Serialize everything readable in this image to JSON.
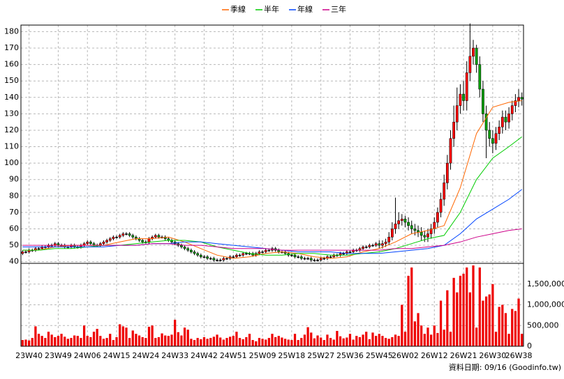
{
  "chart_data": [
    {
      "type": "candlestick",
      "legend": "top",
      "up_color": "#ff0000",
      "down_color": "#00a000",
      "categories": [
        null,
        null,
        "23W40",
        null,
        null,
        null,
        null,
        null,
        null,
        null,
        null,
        "23W49",
        null,
        null,
        null,
        null,
        null,
        null,
        null,
        null,
        "24W06",
        null,
        null,
        null,
        null,
        null,
        null,
        null,
        null,
        "24W15",
        null,
        null,
        null,
        null,
        null,
        null,
        null,
        null,
        "24W24",
        null,
        null,
        null,
        null,
        null,
        null,
        null,
        null,
        "24W33",
        null,
        null,
        null,
        null,
        null,
        null,
        null,
        null,
        "24W42",
        null,
        null,
        null,
        null,
        null,
        null,
        null,
        null,
        "24W51",
        null,
        null,
        null,
        null,
        null,
        null,
        null,
        null,
        "25W09",
        null,
        null,
        null,
        null,
        null,
        null,
        null,
        null,
        "25W18",
        null,
        null,
        null,
        null,
        null,
        null,
        null,
        null,
        "25W27",
        null,
        null,
        null,
        null,
        null,
        null,
        null,
        null,
        "25W36",
        null,
        null,
        null,
        null,
        null,
        null,
        null,
        null,
        "25W45",
        null,
        null,
        null,
        null,
        null,
        null,
        null,
        "26W02",
        null,
        null,
        null,
        null,
        null,
        null,
        null,
        null,
        "26W12",
        null,
        null,
        null,
        null,
        null,
        null,
        null,
        null,
        "26W21",
        null,
        null,
        null,
        null,
        null,
        null,
        null,
        null,
        "26W30",
        null,
        null,
        null,
        null,
        null,
        null,
        null,
        "26W38",
        null
      ],
      "open": [
        45,
        46,
        46,
        47,
        47,
        48,
        48,
        49,
        49,
        50,
        50,
        51,
        50,
        50,
        49,
        49,
        50,
        49,
        49,
        50,
        51,
        52,
        51,
        50,
        50,
        51,
        52,
        53,
        54,
        55,
        55,
        56,
        57,
        57,
        56,
        55,
        54,
        53,
        52,
        52,
        54,
        55,
        56,
        55,
        55,
        54,
        53,
        52,
        51,
        50,
        49,
        48,
        47,
        46,
        45,
        44,
        43,
        43,
        42,
        42,
        41,
        41,
        41,
        42,
        42,
        43,
        43,
        44,
        44,
        45,
        45,
        45,
        44,
        45,
        46,
        46,
        47,
        47,
        48,
        47,
        46,
        46,
        45,
        44,
        44,
        43,
        43,
        42,
        42,
        42,
        41,
        41,
        41,
        42,
        42,
        43,
        43,
        44,
        44,
        45,
        45,
        46,
        46,
        47,
        47,
        48,
        49,
        49,
        50,
        50,
        51,
        50,
        51,
        52,
        55,
        60,
        63,
        65,
        66,
        64,
        62,
        60,
        59,
        58,
        56,
        55,
        57,
        60,
        64,
        70,
        78,
        88,
        100,
        115,
        125,
        135,
        142,
        138,
        155,
        165,
        170,
        160,
        145,
        130,
        120,
        115,
        112,
        118,
        122,
        128,
        125,
        130,
        135,
        138,
        140
      ],
      "high": [
        47,
        47,
        48,
        48,
        49,
        49,
        50,
        50,
        51,
        51,
        52,
        52,
        51,
        51,
        50,
        51,
        51,
        50,
        51,
        52,
        53,
        53,
        52,
        51,
        52,
        53,
        54,
        55,
        56,
        56,
        57,
        58,
        58,
        58,
        57,
        56,
        55,
        54,
        53,
        55,
        56,
        57,
        57,
        56,
        56,
        55,
        54,
        53,
        52,
        51,
        50,
        49,
        48,
        47,
        46,
        45,
        44,
        44,
        43,
        43,
        42,
        42,
        43,
        43,
        44,
        44,
        45,
        45,
        46,
        46,
        46,
        46,
        46,
        47,
        47,
        48,
        48,
        49,
        49,
        48,
        47,
        47,
        46,
        45,
        45,
        44,
        44,
        43,
        43,
        43,
        42,
        42,
        43,
        43,
        44,
        44,
        45,
        45,
        46,
        46,
        47,
        47,
        48,
        48,
        49,
        50,
        50,
        51,
        51,
        52,
        53,
        53,
        54,
        58,
        64,
        79,
        70,
        69,
        68,
        67,
        65,
        63,
        62,
        61,
        59,
        60,
        63,
        67,
        73,
        82,
        93,
        105,
        120,
        135,
        146,
        148,
        150,
        162,
        185,
        175,
        172,
        165,
        150,
        135,
        125,
        120,
        122,
        126,
        132,
        132,
        134,
        138,
        142,
        145,
        143
      ],
      "low": [
        44,
        45,
        45,
        46,
        46,
        47,
        47,
        48,
        48,
        49,
        49,
        49,
        49,
        48,
        48,
        48,
        48,
        48,
        48,
        49,
        50,
        50,
        49,
        49,
        49,
        50,
        51,
        52,
        53,
        54,
        54,
        55,
        56,
        55,
        54,
        53,
        52,
        51,
        51,
        51,
        53,
        54,
        54,
        54,
        53,
        52,
        51,
        50,
        49,
        48,
        47,
        46,
        45,
        44,
        43,
        42,
        42,
        41,
        41,
        40,
        40,
        40,
        40,
        41,
        41,
        42,
        42,
        43,
        43,
        44,
        44,
        43,
        43,
        44,
        45,
        45,
        46,
        46,
        46,
        45,
        45,
        44,
        43,
        43,
        42,
        42,
        41,
        41,
        41,
        40,
        40,
        40,
        40,
        41,
        41,
        42,
        42,
        43,
        43,
        44,
        44,
        45,
        45,
        46,
        46,
        47,
        48,
        48,
        49,
        49,
        48,
        48,
        49,
        50,
        53,
        57,
        60,
        62,
        61,
        59,
        57,
        56,
        55,
        53,
        52,
        52,
        54,
        57,
        61,
        67,
        74,
        84,
        96,
        110,
        120,
        130,
        132,
        132,
        150,
        160,
        155,
        140,
        125,
        103,
        110,
        106,
        108,
        114,
        118,
        120,
        121,
        126,
        131,
        134,
        135
      ],
      "close": [
        46,
        46,
        47,
        47,
        48,
        48,
        49,
        49,
        50,
        50,
        51,
        50,
        50,
        49,
        49,
        50,
        49,
        49,
        50,
        51,
        52,
        51,
        50,
        50,
        51,
        52,
        53,
        54,
        55,
        55,
        56,
        57,
        57,
        56,
        55,
        54,
        53,
        52,
        52,
        54,
        55,
        56,
        55,
        55,
        54,
        53,
        52,
        51,
        50,
        49,
        48,
        47,
        46,
        45,
        44,
        43,
        43,
        42,
        42,
        41,
        41,
        41,
        42,
        42,
        43,
        43,
        44,
        44,
        45,
        45,
        45,
        44,
        45,
        46,
        46,
        47,
        47,
        48,
        47,
        46,
        46,
        45,
        44,
        44,
        43,
        43,
        42,
        42,
        42,
        41,
        41,
        41,
        42,
        42,
        43,
        43,
        44,
        44,
        45,
        45,
        46,
        46,
        47,
        47,
        48,
        49,
        49,
        50,
        50,
        51,
        50,
        51,
        52,
        55,
        60,
        63,
        65,
        66,
        64,
        62,
        60,
        59,
        58,
        56,
        55,
        57,
        60,
        64,
        70,
        78,
        88,
        100,
        115,
        125,
        135,
        142,
        138,
        155,
        165,
        170,
        160,
        145,
        130,
        120,
        115,
        112,
        118,
        122,
        128,
        125,
        130,
        135,
        138,
        140,
        139
      ],
      "ylim": [
        39,
        184
      ],
      "yticks": [
        40,
        50,
        60,
        70,
        80,
        90,
        100,
        110,
        120,
        130,
        140,
        150,
        160,
        170,
        180
      ],
      "grid": true,
      "series": [
        {
          "name": "季線",
          "color": "#ff6600",
          "x": [
            0,
            5,
            10,
            15,
            20,
            25,
            30,
            35,
            40,
            45,
            50,
            55,
            60,
            65,
            70,
            75,
            80,
            85,
            90,
            95,
            100,
            105,
            110,
            115,
            120,
            125,
            130,
            135,
            140,
            145,
            150,
            154
          ],
          "values": [
            47,
            47,
            49,
            50,
            50,
            50,
            52,
            54,
            54,
            55,
            52,
            48,
            44,
            42,
            43,
            45,
            46,
            45,
            43,
            42,
            43,
            46,
            48,
            52,
            57,
            59,
            62,
            85,
            118,
            134,
            137,
            138
          ]
        },
        {
          "name": "半年",
          "color": "#00cc00",
          "x": [
            0,
            5,
            10,
            15,
            20,
            25,
            30,
            35,
            40,
            45,
            50,
            55,
            60,
            65,
            70,
            75,
            80,
            85,
            90,
            95,
            100,
            105,
            110,
            115,
            120,
            125,
            130,
            135,
            140,
            145,
            150,
            154
          ],
          "values": [
            47,
            47,
            48,
            48,
            49,
            50,
            50,
            51,
            52,
            53,
            53,
            52,
            49,
            47,
            45,
            44,
            44,
            45,
            45,
            44,
            44,
            45,
            46,
            48,
            51,
            54,
            56,
            70,
            90,
            103,
            110,
            116
          ]
        },
        {
          "name": "年線",
          "color": "#0044ff",
          "x": [
            0,
            5,
            10,
            15,
            20,
            25,
            30,
            35,
            40,
            45,
            50,
            55,
            60,
            65,
            70,
            75,
            80,
            85,
            90,
            95,
            100,
            105,
            110,
            115,
            120,
            125,
            130,
            135,
            140,
            145,
            150,
            154
          ],
          "values": [
            49,
            49,
            49,
            49,
            49,
            49,
            50,
            50,
            51,
            51,
            52,
            52,
            51,
            50,
            49,
            48,
            47,
            46,
            46,
            46,
            45,
            45,
            45,
            46,
            47,
            48,
            50,
            57,
            66,
            72,
            78,
            84
          ]
        },
        {
          "name": "三年",
          "color": "#cc0088",
          "x": [
            0,
            5,
            10,
            15,
            20,
            25,
            30,
            35,
            40,
            45,
            50,
            55,
            60,
            65,
            70,
            75,
            80,
            85,
            90,
            95,
            100,
            105,
            110,
            115,
            120,
            125,
            130,
            135,
            140,
            145,
            150,
            154
          ],
          "values": [
            50,
            50,
            50,
            50,
            50,
            50,
            50,
            50,
            51,
            51,
            50,
            50,
            49,
            48,
            48,
            48,
            47,
            47,
            47,
            47,
            47,
            47,
            47,
            48,
            48,
            49,
            50,
            52,
            55,
            57,
            59,
            60
          ]
        }
      ]
    },
    {
      "type": "bar",
      "color": "#ee0000",
      "ylim": [
        0,
        2000000
      ],
      "yticks": [
        0,
        {
          "value": 500000,
          "label": "500,000"
        },
        {
          "value": 1000000,
          "label": "1,000,000"
        },
        {
          "value": 1500000,
          "label": "1,500,000"
        }
      ],
      "grid": true,
      "values": [
        150000,
        160000,
        140000,
        200000,
        480000,
        300000,
        250000,
        200000,
        350000,
        280000,
        220000,
        250000,
        300000,
        230000,
        180000,
        200000,
        260000,
        250000,
        200000,
        500000,
        250000,
        220000,
        350000,
        420000,
        250000,
        180000,
        200000,
        300000,
        150000,
        220000,
        530000,
        480000,
        450000,
        200000,
        380000,
        300000,
        260000,
        220000,
        200000,
        470000,
        500000,
        200000,
        220000,
        310000,
        260000,
        250000,
        280000,
        640000,
        340000,
        260000,
        450000,
        400000,
        180000,
        150000,
        200000,
        170000,
        220000,
        180000,
        200000,
        230000,
        280000,
        210000,
        160000,
        200000,
        230000,
        250000,
        350000,
        200000,
        170000,
        220000,
        300000,
        150000,
        120000,
        200000,
        180000,
        160000,
        200000,
        300000,
        220000,
        250000,
        210000,
        180000,
        160000,
        150000,
        300000,
        150000,
        200000,
        280000,
        460000,
        330000,
        190000,
        260000,
        210000,
        150000,
        280000,
        200000,
        160000,
        370000,
        240000,
        190000,
        210000,
        300000,
        160000,
        250000,
        220000,
        280000,
        350000,
        170000,
        330000,
        250000,
        300000,
        250000,
        200000,
        180000,
        220000,
        280000,
        250000,
        1000000,
        350000,
        1700000,
        1900000,
        600000,
        800000,
        500000,
        300000,
        450000,
        280000,
        500000,
        320000,
        1100000,
        400000,
        1350000,
        350000,
        1650000,
        1300000,
        1700000,
        1750000,
        1900000,
        1300000,
        1950000,
        450000,
        1900000,
        1100000,
        1200000,
        1250000,
        1500000,
        350000,
        950000,
        1000000,
        800000,
        300000,
        900000,
        850000,
        1150000,
        300000
      ]
    },
    {
      "type": "note",
      "text": "資料日期: 09/16 (Goodinfo.tw)"
    }
  ]
}
